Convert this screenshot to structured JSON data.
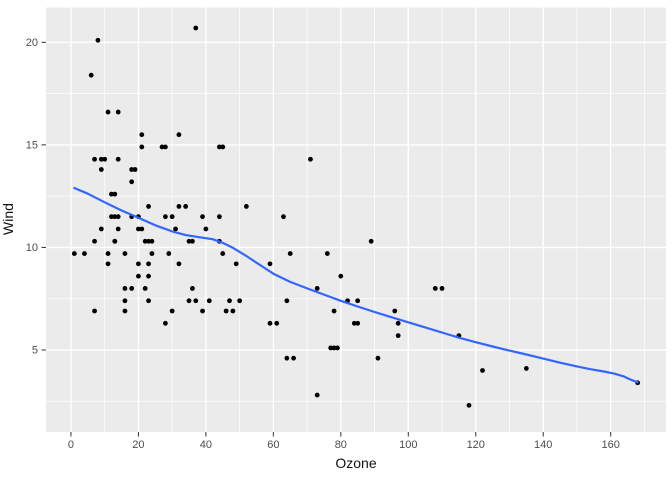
{
  "figure": {
    "x_axis_title": "Ozone",
    "y_axis_title": "Wind"
  },
  "chart_data": {
    "type": "scatter",
    "title": "",
    "xlabel": "Ozone",
    "ylabel": "Wind",
    "legend": false,
    "grid": true,
    "x_ticks": [
      0,
      20,
      40,
      60,
      80,
      100,
      120,
      140,
      160
    ],
    "y_ticks": [
      5,
      10,
      15,
      20
    ],
    "x_minor_ticks": [
      10,
      30,
      50,
      70,
      90,
      110,
      130,
      150,
      170
    ],
    "y_minor_ticks": [
      2.5,
      7.5,
      12.5,
      17.5
    ],
    "xlim": [
      -7.4,
      176.4
    ],
    "ylim": [
      1.0,
      21.7
    ],
    "series": [
      {
        "name": "observations",
        "type": "scatter",
        "points": [
          [
            37,
            20.7
          ],
          [
            8,
            20.1
          ],
          [
            6,
            18.4
          ],
          [
            11,
            16.6
          ],
          [
            14,
            16.6
          ],
          [
            21,
            15.5
          ],
          [
            32,
            15.5
          ],
          [
            21,
            14.9
          ],
          [
            27,
            14.9
          ],
          [
            28,
            14.9
          ],
          [
            44,
            14.9
          ],
          [
            45,
            14.9
          ],
          [
            7,
            14.3
          ],
          [
            9,
            14.3
          ],
          [
            10,
            14.3
          ],
          [
            14,
            14.3
          ],
          [
            71,
            14.3
          ],
          [
            9,
            13.8
          ],
          [
            18,
            13.8
          ],
          [
            19,
            13.8
          ],
          [
            18,
            13.2
          ],
          [
            12,
            12.6
          ],
          [
            13,
            12.6
          ],
          [
            23,
            12
          ],
          [
            32,
            12
          ],
          [
            34,
            12
          ],
          [
            52,
            12
          ],
          [
            12,
            11.5
          ],
          [
            13,
            11.5
          ],
          [
            14,
            11.5
          ],
          [
            18,
            11.5
          ],
          [
            20,
            11.5
          ],
          [
            28,
            11.5
          ],
          [
            30,
            11.5
          ],
          [
            39,
            11.5
          ],
          [
            44,
            11.5
          ],
          [
            63,
            11.5
          ],
          [
            9,
            10.9
          ],
          [
            14,
            10.9
          ],
          [
            20,
            10.9
          ],
          [
            21,
            10.9
          ],
          [
            31,
            10.9
          ],
          [
            40,
            10.9
          ],
          [
            7,
            10.3
          ],
          [
            13,
            10.3
          ],
          [
            13,
            10.3
          ],
          [
            22,
            10.3
          ],
          [
            23,
            10.3
          ],
          [
            24,
            10.3
          ],
          [
            35,
            10.3
          ],
          [
            36,
            10.3
          ],
          [
            44,
            10.3
          ],
          [
            89,
            10.3
          ],
          [
            1,
            9.7
          ],
          [
            4,
            9.7
          ],
          [
            11,
            9.7
          ],
          [
            16,
            9.7
          ],
          [
            24,
            9.7
          ],
          [
            29,
            9.7
          ],
          [
            45,
            9.7
          ],
          [
            65,
            9.7
          ],
          [
            76,
            9.7
          ],
          [
            11,
            9.2
          ],
          [
            20,
            9.2
          ],
          [
            23,
            9.2
          ],
          [
            32,
            9.2
          ],
          [
            49,
            9.2
          ],
          [
            59,
            9.2
          ],
          [
            20,
            8.6
          ],
          [
            23,
            8.6
          ],
          [
            80,
            8.6
          ],
          [
            16,
            8
          ],
          [
            18,
            8
          ],
          [
            22,
            8
          ],
          [
            36,
            8
          ],
          [
            73,
            8
          ],
          [
            108,
            8
          ],
          [
            110,
            8
          ],
          [
            16,
            7.4
          ],
          [
            23,
            7.4
          ],
          [
            35,
            7.4
          ],
          [
            37,
            7.4
          ],
          [
            41,
            7.4
          ],
          [
            47,
            7.4
          ],
          [
            50,
            7.4
          ],
          [
            64,
            7.4
          ],
          [
            82,
            7.4
          ],
          [
            85,
            7.4
          ],
          [
            7,
            6.9
          ],
          [
            16,
            6.9
          ],
          [
            30,
            6.9
          ],
          [
            39,
            6.9
          ],
          [
            46,
            6.9
          ],
          [
            48,
            6.9
          ],
          [
            78,
            6.9
          ],
          [
            96,
            6.9
          ],
          [
            28,
            6.3
          ],
          [
            59,
            6.3
          ],
          [
            61,
            6.3
          ],
          [
            84,
            6.3
          ],
          [
            85,
            6.3
          ],
          [
            97,
            6.3
          ],
          [
            97,
            5.7
          ],
          [
            115,
            5.7
          ],
          [
            77,
            5.1
          ],
          [
            78,
            5.1
          ],
          [
            79,
            5.1
          ],
          [
            64,
            4.6
          ],
          [
            66,
            4.6
          ],
          [
            91,
            4.6
          ],
          [
            135,
            4.1
          ],
          [
            122,
            4
          ],
          [
            168,
            3.4
          ],
          [
            73,
            2.8
          ],
          [
            118,
            2.3
          ]
        ]
      }
    ],
    "smooth_line": {
      "name": "loess-smooth",
      "points": [
        [
          1,
          12.9
        ],
        [
          5,
          12.62
        ],
        [
          10,
          12.2
        ],
        [
          15,
          11.8
        ],
        [
          20,
          11.45
        ],
        [
          25,
          11.08
        ],
        [
          30,
          10.78
        ],
        [
          34,
          10.6
        ],
        [
          38,
          10.5
        ],
        [
          42,
          10.4
        ],
        [
          45,
          10.22
        ],
        [
          48,
          9.98
        ],
        [
          52,
          9.58
        ],
        [
          56,
          9.15
        ],
        [
          60,
          8.72
        ],
        [
          65,
          8.32
        ],
        [
          70,
          8.0
        ],
        [
          75,
          7.7
        ],
        [
          80,
          7.4
        ],
        [
          85,
          7.12
        ],
        [
          90,
          6.85
        ],
        [
          95,
          6.6
        ],
        [
          100,
          6.35
        ],
        [
          105,
          6.1
        ],
        [
          110,
          5.85
        ],
        [
          115,
          5.6
        ],
        [
          120,
          5.38
        ],
        [
          125,
          5.17
        ],
        [
          130,
          4.97
        ],
        [
          135,
          4.78
        ],
        [
          140,
          4.58
        ],
        [
          145,
          4.38
        ],
        [
          150,
          4.2
        ],
        [
          154,
          4.06
        ],
        [
          158,
          3.95
        ],
        [
          161,
          3.85
        ],
        [
          164,
          3.7
        ],
        [
          166,
          3.55
        ],
        [
          168,
          3.42
        ]
      ]
    },
    "colors": {
      "background": "#FFFFFF",
      "panel": "#EBEBEB",
      "grid_major": "#FFFFFF",
      "grid_minor": "#FFFFFF",
      "point": "#000000",
      "smooth": "#3366FF",
      "axis_text": "#4D4D4D",
      "tick_mark": "#333333",
      "axis_title": "#111111"
    }
  }
}
